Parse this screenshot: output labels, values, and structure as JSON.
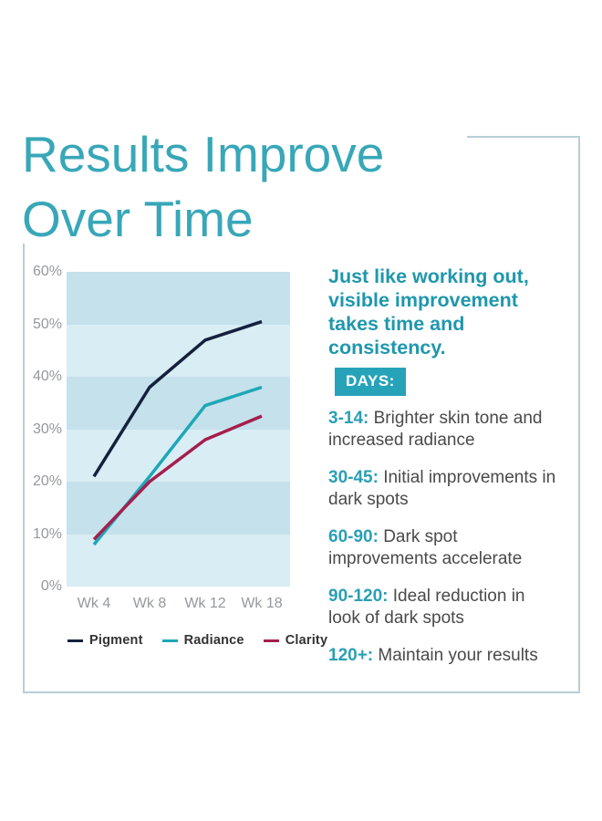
{
  "title": {
    "line1": "Results Improve",
    "line2": "Over Time"
  },
  "chart_data": {
    "type": "line",
    "categories": [
      "Wk 4",
      "Wk 8",
      "Wk 12",
      "Wk 18"
    ],
    "series": [
      {
        "name": "Pigment",
        "color": "#15213c",
        "values": [
          21,
          38,
          47,
          50.5
        ]
      },
      {
        "name": "Radiance",
        "color": "#1ea7b6",
        "values": [
          8,
          21,
          34.5,
          38
        ]
      },
      {
        "name": "Clarity",
        "color": "#a51e4d",
        "values": [
          9,
          20,
          28,
          32.5
        ]
      }
    ],
    "title": "",
    "xlabel": "",
    "ylabel": "",
    "ylim": [
      0,
      60
    ],
    "yticks": [
      60,
      50,
      40,
      30,
      20,
      10,
      0
    ],
    "ytick_suffix": "%",
    "grid": "horizontal-bands",
    "band_colors": [
      "#c4e1ec",
      "#d9edf4"
    ],
    "legend_position": "bottom"
  },
  "right_panel": {
    "intro": "Just like working out, visible improvement takes time and consistency.",
    "days_badge": "DAYS:",
    "timeline": [
      {
        "range": "3-14:",
        "text": " Brighter skin tone and increased radiance"
      },
      {
        "range": "30-45:",
        "text": " Initial improvements in dark spots"
      },
      {
        "range": "60-90:",
        "text": " Dark spot improvements accelerate"
      },
      {
        "range": "90-120:",
        "text": " Ideal reduction in look of dark spots"
      },
      {
        "range": "120+:",
        "text": " Maintain your results"
      }
    ]
  },
  "colors": {
    "title_teal": "#38a7b8",
    "intro_teal": "#1f97ac",
    "badge_teal": "#26a3b9",
    "body_gray": "#4a4a4a",
    "axis_gray": "#96989b",
    "frame_border": "#b7ced7"
  }
}
